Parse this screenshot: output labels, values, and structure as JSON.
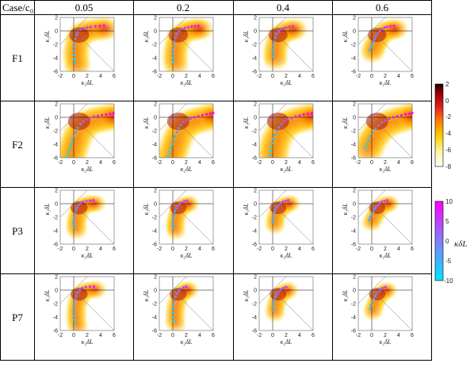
{
  "table": {
    "corner_header": "Case/c₀",
    "columns": [
      "0.05",
      "0.2",
      "0.4",
      "0.6"
    ],
    "rows": [
      "F1",
      "F2",
      "P3",
      "P7"
    ]
  },
  "axes": {
    "xlabel": "κ₂δL",
    "ylabel": "κ₁δL",
    "xticks": [
      "-2",
      "0",
      "2",
      "4",
      "6"
    ],
    "yticks": [
      "2",
      "0",
      "-2",
      "-4",
      "-6"
    ],
    "xlim": [
      -2,
      6
    ],
    "ylim": [
      -6,
      2
    ]
  },
  "colorbar_density": {
    "ticks": [
      "2",
      "0",
      "-2",
      "-4",
      "-6",
      "-8"
    ],
    "range": [
      -8,
      2
    ],
    "colormap": [
      "#ffffff",
      "#fff4a0",
      "#ffd000",
      "#ff8000",
      "#e02020",
      "#a00000",
      "#200000"
    ]
  },
  "colorbar_curvature": {
    "label": "κδL",
    "ticks": [
      "10",
      "5",
      "0",
      "-5",
      "-10"
    ],
    "range": [
      -10,
      10
    ],
    "colormap": [
      "#00e5ff",
      "#8080ff",
      "#ff00ff"
    ]
  },
  "colors": {
    "grid_line": "#000000",
    "diagonal_line": "#7a7a7a"
  },
  "chart_data": {
    "type": "scatter",
    "description_of_marks": "Per-panel density of (κ2δL, κ1δL) with overlaid conditional-mean markers colored by κδL",
    "panels": [
      {
        "row": "F1",
        "col": "0.05",
        "spread": 0.75,
        "dots": [
          [
            0.2,
            -4.8
          ],
          [
            0.1,
            -4.2
          ],
          [
            0.0,
            -3.6
          ],
          [
            0.0,
            -3.0
          ],
          [
            0.0,
            -2.4
          ],
          [
            0.1,
            -1.8
          ],
          [
            0.2,
            -1.2
          ],
          [
            0.4,
            -0.6
          ],
          [
            0.6,
            -0.2
          ],
          [
            1.0,
            0.2
          ],
          [
            1.5,
            0.4
          ],
          [
            2.0,
            0.5
          ],
          [
            2.5,
            0.6
          ],
          [
            3.2,
            0.7
          ],
          [
            3.9,
            0.75
          ],
          [
            4.5,
            0.8
          ]
        ]
      },
      {
        "row": "F1",
        "col": "0.2",
        "spread": 0.7,
        "dots": [
          [
            0.1,
            -4.6
          ],
          [
            0.0,
            -4.0
          ],
          [
            0.0,
            -3.4
          ],
          [
            0.0,
            -2.8
          ],
          [
            0.1,
            -2.2
          ],
          [
            0.2,
            -1.6
          ],
          [
            0.4,
            -1.0
          ],
          [
            0.6,
            -0.5
          ],
          [
            0.9,
            -0.1
          ],
          [
            1.3,
            0.3
          ],
          [
            1.8,
            0.45
          ],
          [
            2.3,
            0.55
          ],
          [
            2.8,
            0.65
          ],
          [
            3.3,
            0.7
          ],
          [
            3.8,
            0.75
          ]
        ]
      },
      {
        "row": "F1",
        "col": "0.4",
        "spread": 0.65,
        "dots": [
          [
            0.1,
            -3.8
          ],
          [
            0.0,
            -3.3
          ],
          [
            0.0,
            -2.8
          ],
          [
            0.1,
            -2.2
          ],
          [
            0.2,
            -1.6
          ],
          [
            0.4,
            -1.0
          ],
          [
            0.6,
            -0.5
          ],
          [
            0.9,
            -0.1
          ],
          [
            1.2,
            0.2
          ],
          [
            1.6,
            0.4
          ],
          [
            2.0,
            0.5
          ],
          [
            2.5,
            0.6
          ],
          [
            3.0,
            0.7
          ]
        ]
      },
      {
        "row": "F1",
        "col": "0.6",
        "spread": 0.6,
        "dots": [
          [
            -0.3,
            -2.8
          ],
          [
            -0.1,
            -2.4
          ],
          [
            0.0,
            -2.0
          ],
          [
            0.2,
            -1.6
          ],
          [
            0.4,
            -1.2
          ],
          [
            0.6,
            -0.8
          ],
          [
            0.9,
            -0.4
          ],
          [
            1.2,
            0.0
          ],
          [
            1.5,
            0.3
          ],
          [
            1.9,
            0.5
          ],
          [
            2.3,
            0.6
          ],
          [
            2.8,
            0.7
          ],
          [
            3.3,
            0.75
          ]
        ]
      },
      {
        "row": "F2",
        "col": "0.05",
        "spread": 1.0,
        "dots": [
          [
            -1.0,
            -5.8
          ],
          [
            -0.8,
            -5.2
          ],
          [
            -0.6,
            -4.6
          ],
          [
            -0.4,
            -4.0
          ],
          [
            -0.2,
            -3.4
          ],
          [
            0.0,
            -2.8
          ],
          [
            0.3,
            -2.2
          ],
          [
            0.6,
            -1.6
          ],
          [
            1.0,
            -1.0
          ],
          [
            1.4,
            -0.6
          ],
          [
            1.9,
            -0.3
          ],
          [
            2.4,
            -0.1
          ],
          [
            3.0,
            0.1
          ],
          [
            3.6,
            0.2
          ],
          [
            4.2,
            0.3
          ],
          [
            4.8,
            0.4
          ],
          [
            5.4,
            0.5
          ],
          [
            5.9,
            0.6
          ]
        ]
      },
      {
        "row": "F2",
        "col": "0.2",
        "spread": 1.0,
        "dots": [
          [
            -0.7,
            -5.8
          ],
          [
            -0.5,
            -5.2
          ],
          [
            -0.3,
            -4.6
          ],
          [
            -0.1,
            -4.0
          ],
          [
            0.1,
            -3.4
          ],
          [
            0.3,
            -2.8
          ],
          [
            0.6,
            -2.2
          ],
          [
            0.9,
            -1.6
          ],
          [
            1.2,
            -1.1
          ],
          [
            1.6,
            -0.7
          ],
          [
            2.1,
            -0.4
          ],
          [
            2.6,
            -0.2
          ],
          [
            3.2,
            0.0
          ],
          [
            3.8,
            0.15
          ],
          [
            4.4,
            0.3
          ],
          [
            5.0,
            0.45
          ],
          [
            5.6,
            0.55
          ],
          [
            6.0,
            0.65
          ]
        ]
      },
      {
        "row": "F2",
        "col": "0.4",
        "spread": 1.0,
        "dots": [
          [
            -0.4,
            -5.6
          ],
          [
            -0.3,
            -5.0
          ],
          [
            -0.2,
            -4.4
          ],
          [
            -0.1,
            -3.8
          ],
          [
            0.1,
            -3.2
          ],
          [
            0.3,
            -2.6
          ],
          [
            0.6,
            -2.0
          ],
          [
            0.9,
            -1.5
          ],
          [
            1.3,
            -1.0
          ],
          [
            1.7,
            -0.6
          ],
          [
            2.2,
            -0.3
          ],
          [
            2.8,
            -0.1
          ],
          [
            3.4,
            0.1
          ],
          [
            4.0,
            0.25
          ],
          [
            4.6,
            0.4
          ],
          [
            5.2,
            0.5
          ],
          [
            5.8,
            0.6
          ]
        ]
      },
      {
        "row": "F2",
        "col": "0.6",
        "spread": 1.0,
        "dots": [
          [
            -1.0,
            -4.6
          ],
          [
            -0.8,
            -4.0
          ],
          [
            -0.5,
            -3.4
          ],
          [
            -0.2,
            -2.8
          ],
          [
            0.2,
            -2.2
          ],
          [
            0.6,
            -1.7
          ],
          [
            1.0,
            -1.2
          ],
          [
            1.5,
            -0.8
          ],
          [
            2.0,
            -0.5
          ],
          [
            2.6,
            -0.2
          ],
          [
            3.2,
            0.0
          ],
          [
            3.8,
            0.15
          ],
          [
            4.4,
            0.3
          ],
          [
            5.0,
            0.45
          ],
          [
            5.6,
            0.55
          ],
          [
            6.0,
            0.65
          ]
        ]
      },
      {
        "row": "P3",
        "col": "0.05",
        "spread": 0.45,
        "dots": [
          [
            0.1,
            -3.5
          ],
          [
            0.0,
            -3.0
          ],
          [
            0.0,
            -2.5
          ],
          [
            0.1,
            -2.0
          ],
          [
            0.2,
            -1.5
          ],
          [
            0.3,
            -1.0
          ],
          [
            0.5,
            -0.6
          ],
          [
            0.7,
            -0.2
          ],
          [
            1.0,
            0.1
          ],
          [
            1.4,
            0.3
          ],
          [
            1.9,
            0.4
          ],
          [
            2.4,
            0.45
          ],
          [
            2.9,
            0.5
          ]
        ]
      },
      {
        "row": "P3",
        "col": "0.2",
        "spread": 0.4,
        "dots": [
          [
            0.1,
            -3.6
          ],
          [
            0.0,
            -3.1
          ],
          [
            0.0,
            -2.6
          ],
          [
            0.1,
            -2.1
          ],
          [
            0.2,
            -1.6
          ],
          [
            0.3,
            -1.1
          ],
          [
            0.5,
            -0.7
          ],
          [
            0.7,
            -0.3
          ],
          [
            1.0,
            0.0
          ],
          [
            1.3,
            0.2
          ],
          [
            1.7,
            0.35
          ],
          [
            2.1,
            0.45
          ]
        ]
      },
      {
        "row": "P3",
        "col": "0.4",
        "spread": 0.4,
        "dots": [
          [
            0.0,
            -2.8
          ],
          [
            0.0,
            -2.3
          ],
          [
            0.1,
            -1.8
          ],
          [
            0.2,
            -1.3
          ],
          [
            0.4,
            -0.9
          ],
          [
            0.6,
            -0.5
          ],
          [
            0.9,
            -0.2
          ],
          [
            1.2,
            0.1
          ],
          [
            1.5,
            0.3
          ],
          [
            1.9,
            0.4
          ],
          [
            2.3,
            0.5
          ]
        ]
      },
      {
        "row": "P3",
        "col": "0.6",
        "spread": 0.38,
        "dots": [
          [
            -0.4,
            -2.4
          ],
          [
            -0.2,
            -2.0
          ],
          [
            0.0,
            -1.6
          ],
          [
            0.2,
            -1.2
          ],
          [
            0.4,
            -0.8
          ],
          [
            0.6,
            -0.5
          ],
          [
            0.9,
            -0.2
          ],
          [
            1.2,
            0.1
          ],
          [
            1.5,
            0.3
          ],
          [
            1.9,
            0.4
          ],
          [
            2.3,
            0.5
          ]
        ]
      },
      {
        "row": "P7",
        "col": "0.05",
        "spread": 0.45,
        "dots": [
          [
            0.2,
            -5.0
          ],
          [
            0.1,
            -4.4
          ],
          [
            0.0,
            -3.8
          ],
          [
            0.0,
            -3.2
          ],
          [
            0.0,
            -2.6
          ],
          [
            0.1,
            -2.0
          ],
          [
            0.2,
            -1.4
          ],
          [
            0.4,
            -0.9
          ],
          [
            0.6,
            -0.4
          ],
          [
            0.9,
            0.0
          ],
          [
            1.3,
            0.3
          ],
          [
            1.8,
            0.45
          ],
          [
            2.4,
            0.5
          ],
          [
            3.0,
            0.55
          ]
        ]
      },
      {
        "row": "P7",
        "col": "0.2",
        "spread": 0.42,
        "dots": [
          [
            0.1,
            -4.6
          ],
          [
            0.0,
            -4.0
          ],
          [
            0.0,
            -3.4
          ],
          [
            0.0,
            -2.8
          ],
          [
            0.1,
            -2.2
          ],
          [
            0.2,
            -1.6
          ],
          [
            0.4,
            -1.0
          ],
          [
            0.6,
            -0.5
          ],
          [
            0.9,
            -0.1
          ],
          [
            1.2,
            0.2
          ],
          [
            1.6,
            0.4
          ],
          [
            2.0,
            0.5
          ]
        ]
      },
      {
        "row": "P7",
        "col": "0.4",
        "spread": 0.4,
        "dots": [
          [
            0.0,
            -3.0
          ],
          [
            0.0,
            -2.5
          ],
          [
            0.1,
            -2.0
          ],
          [
            0.2,
            -1.5
          ],
          [
            0.4,
            -1.0
          ],
          [
            0.6,
            -0.6
          ],
          [
            0.9,
            -0.2
          ],
          [
            1.2,
            0.1
          ],
          [
            1.6,
            0.3
          ],
          [
            2.0,
            0.45
          ]
        ]
      },
      {
        "row": "P7",
        "col": "0.6",
        "spread": 0.38,
        "dots": [
          [
            -0.2,
            -2.8
          ],
          [
            -0.1,
            -2.3
          ],
          [
            0.1,
            -1.8
          ],
          [
            0.3,
            -1.3
          ],
          [
            0.5,
            -0.9
          ],
          [
            0.7,
            -0.5
          ],
          [
            1.0,
            -0.2
          ],
          [
            1.3,
            0.1
          ],
          [
            1.6,
            0.3
          ],
          [
            2.0,
            0.45
          ]
        ]
      }
    ]
  }
}
